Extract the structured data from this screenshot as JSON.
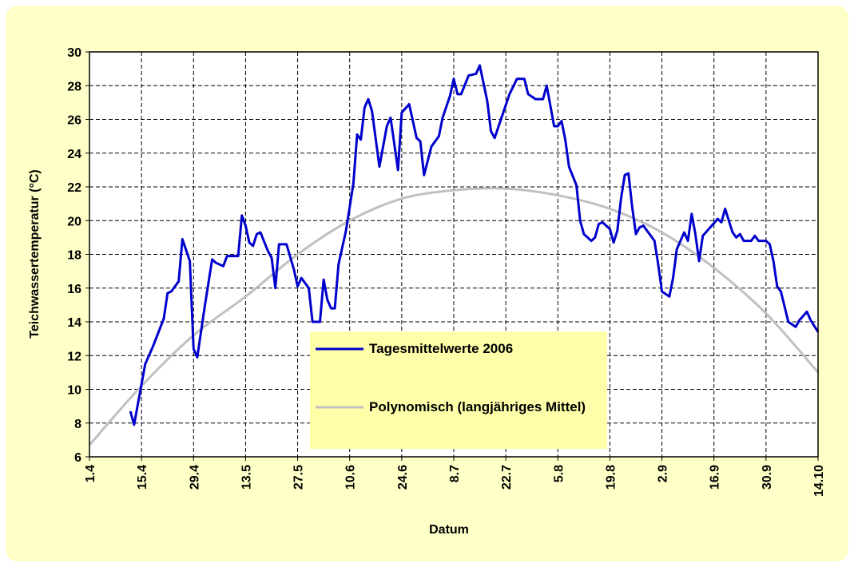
{
  "chart_data": {
    "type": "line",
    "x_label": "Datum",
    "y_label": "Teichwassertemperatur (°C)",
    "xlim": [
      0,
      196
    ],
    "xticks": [
      {
        "value": 0,
        "label": "1.4"
      },
      {
        "value": 14,
        "label": "15.4"
      },
      {
        "value": 28,
        "label": "29.4"
      },
      {
        "value": 42,
        "label": "13.5"
      },
      {
        "value": 56,
        "label": "27.5"
      },
      {
        "value": 70,
        "label": "10.6"
      },
      {
        "value": 84,
        "label": "24.6"
      },
      {
        "value": 98,
        "label": "8.7"
      },
      {
        "value": 112,
        "label": "22.7"
      },
      {
        "value": 126,
        "label": "5.8"
      },
      {
        "value": 140,
        "label": "19.8"
      },
      {
        "value": 154,
        "label": "2.9"
      },
      {
        "value": 168,
        "label": "16.9"
      },
      {
        "value": 182,
        "label": "30.9"
      },
      {
        "value": 196,
        "label": "14.10"
      }
    ],
    "ylim": [
      6,
      30
    ],
    "yticks": [
      6,
      8,
      10,
      12,
      14,
      16,
      18,
      20,
      22,
      24,
      26,
      28,
      30
    ],
    "grid": true,
    "series": [
      {
        "name": "Tagesmittelwerte 2006",
        "color": "#0000cc",
        "smooth": false,
        "x": [
          11,
          12,
          15,
          16,
          17,
          20,
          21,
          22,
          24,
          25,
          27,
          28,
          29,
          31,
          33,
          34,
          36,
          37,
          40,
          41,
          42,
          43,
          44,
          45,
          46,
          48,
          49,
          50,
          51,
          53,
          55,
          56,
          57,
          59,
          60,
          62,
          63,
          64,
          65,
          66,
          67,
          69,
          71,
          72,
          73,
          74,
          75,
          76,
          78,
          80,
          81,
          83,
          84,
          86,
          88,
          89,
          90,
          92,
          94,
          95,
          97,
          98,
          99,
          100,
          102,
          104,
          105,
          107,
          108,
          109,
          113,
          115,
          117,
          118,
          120,
          122,
          123,
          125,
          126,
          127,
          128,
          129,
          131,
          132,
          133,
          135,
          136,
          137,
          138,
          140,
          141,
          142,
          143,
          144,
          145,
          146,
          147,
          148,
          149,
          151,
          152,
          153,
          154,
          156,
          157,
          158,
          160,
          161,
          162,
          163,
          164,
          165,
          167,
          169,
          170,
          171,
          173,
          174,
          175,
          176,
          178,
          179,
          180,
          182,
          183,
          184,
          185,
          186,
          187,
          188,
          190,
          191,
          193,
          194,
          196
        ],
        "values": [
          8.7,
          7.9,
          11.5,
          12.0,
          12.5,
          14.2,
          15.7,
          15.8,
          16.4,
          18.9,
          17.6,
          12.4,
          11.9,
          14.9,
          17.7,
          17.5,
          17.3,
          17.9,
          17.9,
          20.3,
          19.7,
          18.7,
          18.5,
          19.2,
          19.3,
          18.2,
          17.8,
          16.0,
          18.6,
          18.6,
          17.1,
          16.1,
          16.6,
          16.0,
          14.0,
          14.0,
          16.5,
          15.3,
          14.8,
          14.8,
          17.4,
          19.4,
          22.2,
          25.1,
          24.8,
          26.7,
          27.2,
          26.5,
          23.2,
          25.6,
          26.1,
          23.0,
          26.4,
          26.9,
          24.9,
          24.7,
          22.7,
          24.4,
          25.0,
          26.1,
          27.4,
          28.4,
          27.5,
          27.5,
          28.6,
          28.7,
          29.2,
          27.1,
          25.3,
          24.9,
          27.5,
          28.4,
          28.4,
          27.5,
          27.2,
          27.2,
          28.0,
          25.6,
          25.6,
          25.9,
          24.8,
          23.2,
          22.1,
          20.0,
          19.2,
          18.8,
          19.0,
          19.8,
          19.9,
          19.5,
          18.7,
          19.4,
          21.3,
          22.7,
          22.8,
          20.8,
          19.2,
          19.6,
          19.7,
          19.1,
          18.8,
          17.4,
          15.8,
          15.5,
          16.6,
          18.3,
          19.3,
          18.8,
          20.4,
          19.2,
          17.6,
          19.1,
          19.6,
          20.1,
          19.9,
          20.7,
          19.3,
          19.0,
          19.2,
          18.8,
          18.8,
          19.1,
          18.8,
          18.8,
          18.6,
          17.6,
          16.1,
          15.8,
          14.9,
          14.0,
          13.7,
          14.1,
          14.6,
          14.1,
          13.4
        ]
      },
      {
        "name": "Polynomisch (langjähriges Mittel)",
        "color": "#c0c0c0",
        "smooth": true,
        "x": [
          0,
          14,
          28,
          42,
          56,
          70,
          84,
          98,
          112,
          126,
          140,
          154,
          168,
          182,
          196
        ],
        "values": [
          6.7,
          10.2,
          13.2,
          15.5,
          18.0,
          20.0,
          21.3,
          21.8,
          21.9,
          21.5,
          20.7,
          19.3,
          17.2,
          14.5,
          11.0
        ]
      }
    ]
  }
}
